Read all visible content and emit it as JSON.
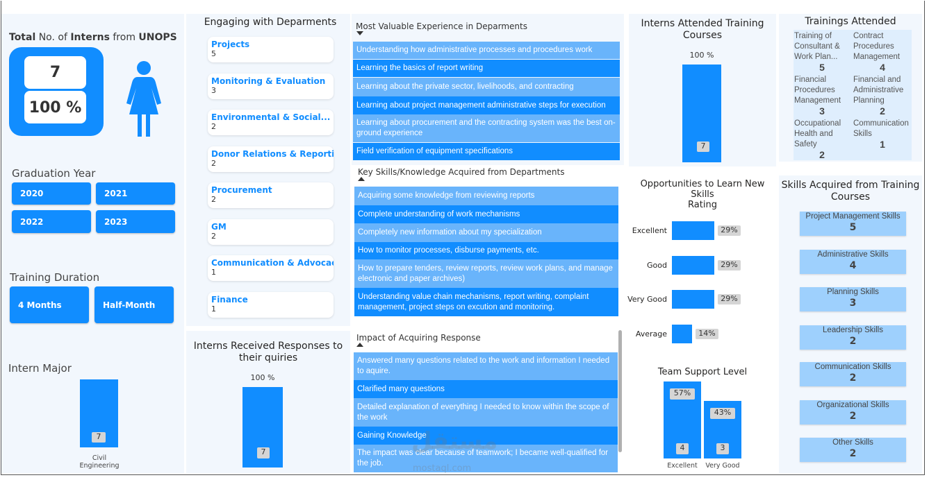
{
  "total": {
    "label_parts": [
      "Total",
      " No. of ",
      "Interns",
      " from ",
      "UNOPS"
    ],
    "count": "7",
    "percent": "100 %"
  },
  "graduation": {
    "title": "Graduation Year",
    "years": [
      "2020",
      "2021",
      "2022",
      "2023"
    ]
  },
  "duration": {
    "title": "Training Duration",
    "options": [
      "4 Months",
      "Half-Month"
    ]
  },
  "major": {
    "title": "Intern Major",
    "value": "7",
    "category_line1": "Civil",
    "category_line2": "Engineering"
  },
  "departments": {
    "title": "Engaging with Deparments",
    "items": [
      {
        "name": "Projects",
        "value": "5"
      },
      {
        "name": "Monitoring & Evaluation",
        "value": "3"
      },
      {
        "name": "Environmental & Social...",
        "value": "2"
      },
      {
        "name": "Donor Relations & Reporting",
        "value": "2"
      },
      {
        "name": "Procurement",
        "value": "2"
      },
      {
        "name": "GM",
        "value": "2"
      },
      {
        "name": "Communication & Advocacy",
        "value": "1"
      },
      {
        "name": "Finance",
        "value": "1"
      }
    ]
  },
  "responses": {
    "title_line1": "Interns Received Responses to",
    "title_line2": "their quiries",
    "percent": "100 %",
    "value": "7"
  },
  "experience": {
    "title": "Most Valuable Experience in Deparments",
    "rows": [
      "Understanding how administrative processes and procedures work",
      "Learning the basics of report writing",
      "Learning about the private sector, livelihoods, and contracting",
      "Learning about project management administrative steps for execution",
      "Learning about procurement and the contracting system was the best on-ground experience",
      "Field verification of equipment specifications"
    ]
  },
  "skills_knowledge": {
    "title": "Key Skills/Knowledge Acquired from Departments",
    "rows": [
      "Acquiring some knowledge from reviewing reports",
      "Complete understanding of work mechanisms",
      "Completely new information about my specialization",
      "How to monitor processes, disburse payments, etc.",
      "How to prepare tenders, review reports, review work plans, and manage electronic and paper archives)",
      "Understanding value chain mechanisms, report writing, complaint management, project steps on excution and monitoring."
    ]
  },
  "impact": {
    "title": "Impact of Acquiring Response",
    "rows": [
      "Answered many questions related to the work and information I needed to aquire.",
      "Clarified many questions",
      "Detailed explanation of everything I needed to know within the scope of the work",
      "Gaining Knowledge",
      "The impact was clear because of teamwork; I became well-qualified for the job."
    ]
  },
  "attended": {
    "title_line1": "Interns Attended Training",
    "title_line2": "Courses",
    "percent": "100 %",
    "value": "7"
  },
  "opportunities": {
    "title_line1": "Opportunities to Learn New Skills",
    "title_line2": "Rating"
  },
  "team_support": {
    "title": "Team Support Level"
  },
  "trainings": {
    "title": "Trainings Attended",
    "items": [
      {
        "name": "Training of Consultant & Work Plan...",
        "value": "5"
      },
      {
        "name": "Contract Procedures Management",
        "value": "4"
      },
      {
        "name": "Financial Procedures Management",
        "value": "3"
      },
      {
        "name": "Financial and Administrative Planning",
        "value": "2"
      },
      {
        "name": "Occupational Health and Safety",
        "value": "2"
      },
      {
        "name": "Communication Skills",
        "value": "1"
      }
    ]
  },
  "skills_training": {
    "title_line1": "Skills Acquired from Training",
    "title_line2": "Courses",
    "items": [
      {
        "name": "Project Management Skills",
        "value": "5"
      },
      {
        "name": "Administrative Skills",
        "value": "4"
      },
      {
        "name": "Planning Skills",
        "value": "3"
      },
      {
        "name": "Leadership Skills",
        "value": "2"
      },
      {
        "name": "Communication Skills",
        "value": "2"
      },
      {
        "name": "Organizational Skills",
        "value": "2"
      },
      {
        "name": "Other Skills",
        "value": "2"
      }
    ]
  },
  "watermark": {
    "text": "مستقل",
    "url": "mostaql.com"
  },
  "chart_data": [
    {
      "type": "bar",
      "title": "Intern Major",
      "categories": [
        "Civil Engineering"
      ],
      "values": [
        7
      ],
      "ylim": [
        0,
        7
      ]
    },
    {
      "type": "bar",
      "title": "Interns Received Responses to their quiries",
      "categories": [
        ""
      ],
      "values": [
        7
      ],
      "labels": [
        "100 %"
      ],
      "ylim": [
        0,
        7
      ]
    },
    {
      "type": "bar",
      "title": "Interns Attended Training Courses",
      "categories": [
        ""
      ],
      "values": [
        7
      ],
      "labels": [
        "100 %"
      ],
      "ylim": [
        0,
        7
      ]
    },
    {
      "type": "bar",
      "orientation": "horizontal",
      "title": "Opportunities to Learn New Skills Rating",
      "categories": [
        "Excellent",
        "Good",
        "Very Good",
        "Average"
      ],
      "values": [
        29,
        29,
        29,
        14
      ],
      "labels": [
        "29%",
        "29%",
        "29%",
        "14%"
      ],
      "xlim": [
        0,
        29
      ]
    },
    {
      "type": "bar",
      "title": "Team Support Level",
      "categories": [
        "Excellent",
        "Very Good"
      ],
      "values": [
        4,
        3
      ],
      "labels": [
        "57%",
        "43%"
      ],
      "ylim": [
        0,
        4
      ]
    }
  ]
}
